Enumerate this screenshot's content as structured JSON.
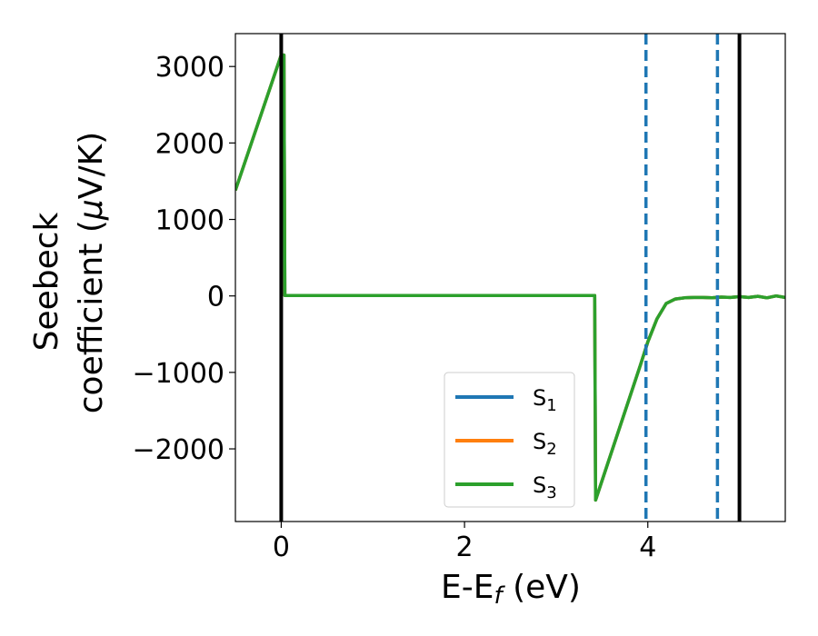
{
  "chart_data": {
    "type": "line",
    "xlabel": {
      "main": "E-E",
      "sub": "f",
      "unit": " (eV)"
    },
    "ylabel": {
      "line1": "Seebeck",
      "line2_pre": "coefficient  (",
      "line2_mu": "μ",
      "line2_post": "V/K)"
    },
    "xlim": [
      -0.5,
      5.5
    ],
    "ylim": [
      -2950,
      3430
    ],
    "x_ticks": [
      0,
      2,
      4
    ],
    "x_tick_labels": [
      "0",
      "2",
      "4"
    ],
    "y_ticks": [
      3000,
      2000,
      1000,
      0,
      -1000,
      -2000
    ],
    "y_tick_labels": [
      "3000",
      "2000",
      "1000",
      "0",
      "−1000",
      "−2000"
    ],
    "grid": false,
    "legend_placement": "lower-center",
    "vertical_lines": [
      {
        "x": 0,
        "style": "solid",
        "color": "#000000"
      },
      {
        "x": 5.0,
        "style": "solid",
        "color": "#000000"
      },
      {
        "x": 3.98,
        "style": "dashed",
        "color": "#1f77b4"
      },
      {
        "x": 4.76,
        "style": "dashed",
        "color": "#1f77b4"
      }
    ],
    "series": [
      {
        "name": {
          "main": "S",
          "sub": "1"
        },
        "color": "#1f77b4",
        "x": [
          -0.5,
          0.0,
          0.03,
          0.04,
          3.42,
          3.43,
          3.92,
          4.0,
          4.1,
          4.2,
          4.3,
          4.4,
          4.5,
          4.6,
          4.7,
          4.8,
          4.9,
          5.0,
          5.1,
          5.2,
          5.3,
          5.4,
          5.5
        ],
        "y": [
          1380,
          3150,
          3150,
          5,
          5,
          -2670,
          -900,
          -600,
          -300,
          -100,
          -40,
          -25,
          -20,
          -20,
          -25,
          -15,
          -20,
          -10,
          -20,
          -5,
          -25,
          0,
          -20
        ]
      },
      {
        "name": {
          "main": "S",
          "sub": "2"
        },
        "color": "#ff7f0e",
        "x": [
          -0.5,
          0.0,
          0.03,
          0.04,
          3.42,
          3.43,
          3.92,
          4.0,
          4.1,
          4.2,
          4.3,
          4.4,
          4.5,
          4.6,
          4.7,
          4.8,
          4.9,
          5.0,
          5.1,
          5.2,
          5.3,
          5.4,
          5.5
        ],
        "y": [
          1380,
          3150,
          3150,
          5,
          5,
          -2670,
          -900,
          -600,
          -300,
          -100,
          -40,
          -25,
          -20,
          -20,
          -25,
          -15,
          -20,
          -10,
          -20,
          -5,
          -25,
          0,
          -20
        ]
      },
      {
        "name": {
          "main": "S",
          "sub": "3"
        },
        "color": "#2ca02c",
        "x": [
          -0.5,
          0.0,
          0.03,
          0.04,
          3.42,
          3.43,
          3.92,
          4.0,
          4.1,
          4.2,
          4.3,
          4.4,
          4.5,
          4.6,
          4.7,
          4.8,
          4.9,
          5.0,
          5.1,
          5.2,
          5.3,
          5.4,
          5.5
        ],
        "y": [
          1380,
          3150,
          3150,
          5,
          5,
          -2670,
          -900,
          -600,
          -300,
          -100,
          -40,
          -25,
          -20,
          -20,
          -25,
          -15,
          -20,
          -10,
          -20,
          -5,
          -25,
          0,
          -20
        ]
      }
    ]
  }
}
